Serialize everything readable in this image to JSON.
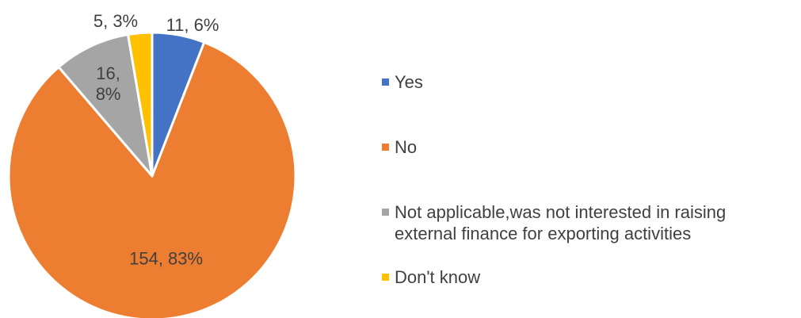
{
  "chart_data": {
    "type": "pie",
    "title": "",
    "slices": [
      {
        "label": "Yes",
        "count": 11,
        "percent": 6,
        "data_label": "11, 6%",
        "color": "#4472C4"
      },
      {
        "label": "No",
        "count": 154,
        "percent": 83,
        "data_label": "154, 83%",
        "color": "#ED7D31"
      },
      {
        "label": "Not applicable,was not interested in raising external finance for exporting activities",
        "count": 16,
        "percent": 8,
        "data_label": "16, 8%",
        "color": "#A5A5A5"
      },
      {
        "label": "Don't know",
        "count": 5,
        "percent": 3,
        "data_label": "5, 3%",
        "color": "#FFC000"
      }
    ],
    "legend_position": "right",
    "slice_border_color": "#FFFFFF"
  }
}
